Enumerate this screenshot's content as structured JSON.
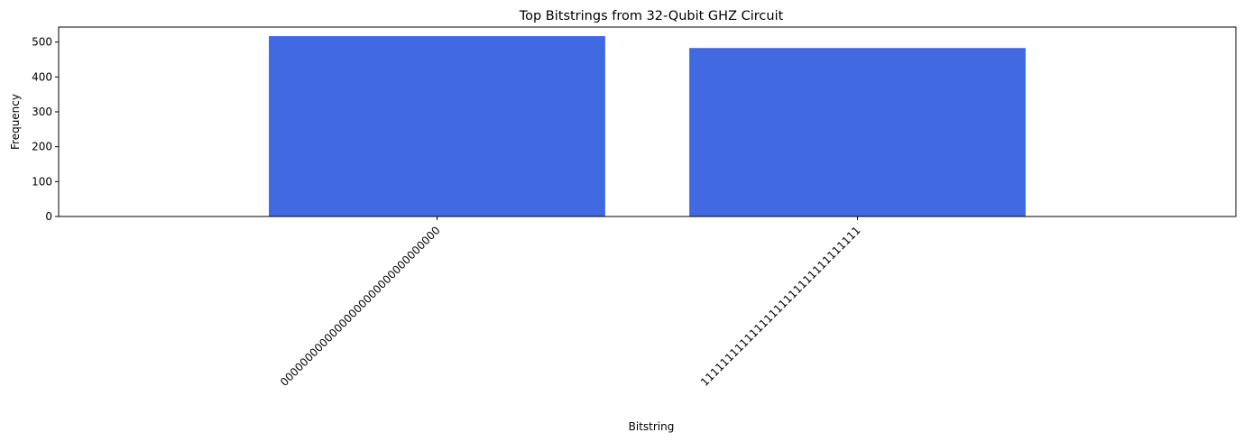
{
  "chart_data": {
    "type": "bar",
    "title": "Top Bitstrings from 32-Qubit GHZ Circuit",
    "xlabel": "Bitstring",
    "ylabel": "Frequency",
    "categories": [
      "00000000000000000000000000000000",
      "11111111111111111111111111111111"
    ],
    "values": [
      517,
      483
    ],
    "ylim": [
      0,
      543
    ],
    "yticks": [
      0,
      100,
      200,
      300,
      400,
      500
    ],
    "bar_color": "#4169E1",
    "grid": false,
    "legend": "none"
  }
}
